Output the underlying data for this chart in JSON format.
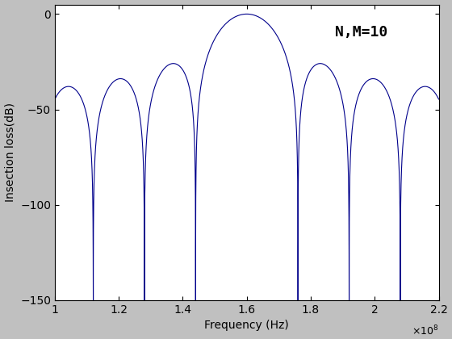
{
  "f0": 160000000.0,
  "N": 10,
  "M": 10,
  "f_start": 100000000.0,
  "f_end": 220000000.0,
  "ylim": [
    -150,
    5
  ],
  "xlabel": "Frequency (Hz)",
  "ylabel": "Insection loss(dB)",
  "annotation": "N,M=10",
  "line_color": "#00008B",
  "bg_color": "#C0C0C0",
  "plot_bg": "#FFFFFF",
  "xticks": [
    100000000.0,
    120000000.0,
    140000000.0,
    160000000.0,
    180000000.0,
    200000000.0,
    220000000.0
  ],
  "yticks": [
    0,
    -50,
    -100,
    -150
  ],
  "num_points": 20000
}
